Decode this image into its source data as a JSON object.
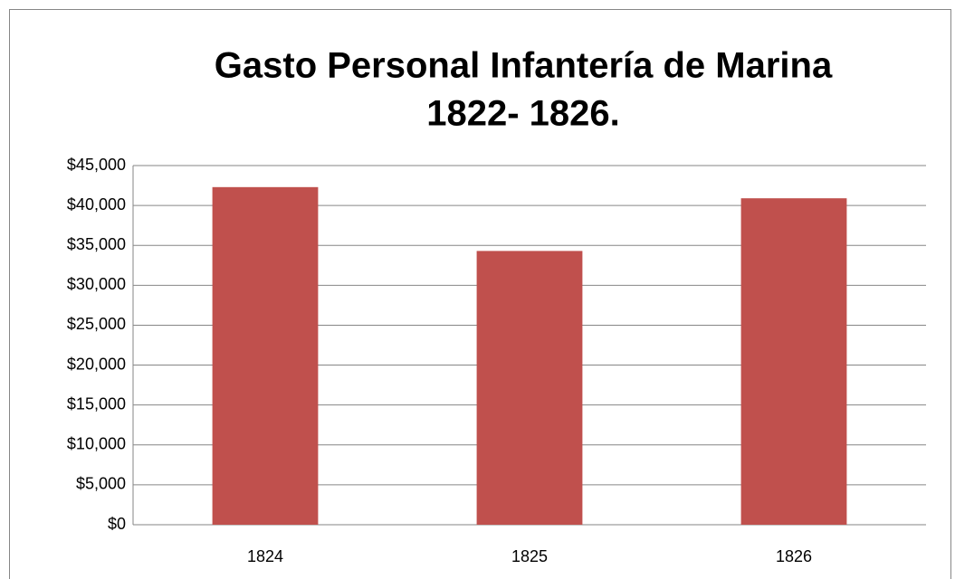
{
  "chart_data": {
    "type": "bar",
    "title": [
      "Gasto Personal Infantería de Marina",
      "1822- 1826."
    ],
    "categories": [
      "1824",
      "1825",
      "1826"
    ],
    "values": [
      42300,
      34300,
      40900
    ],
    "color": "#c0504d",
    "ylim": [
      0,
      45000
    ],
    "yticks": [
      {
        "value": 0,
        "label": "$0"
      },
      {
        "value": 5000,
        "label": "$5,000"
      },
      {
        "value": 10000,
        "label": "$10,000"
      },
      {
        "value": 15000,
        "label": "$15,000"
      },
      {
        "value": 20000,
        "label": "$20,000"
      },
      {
        "value": 25000,
        "label": "$25,000"
      },
      {
        "value": 30000,
        "label": "$30,000"
      },
      {
        "value": 35000,
        "label": "$35,000"
      },
      {
        "value": 40000,
        "label": "$40,000"
      },
      {
        "value": 45000,
        "label": "$45,000"
      }
    ],
    "grid": true
  }
}
